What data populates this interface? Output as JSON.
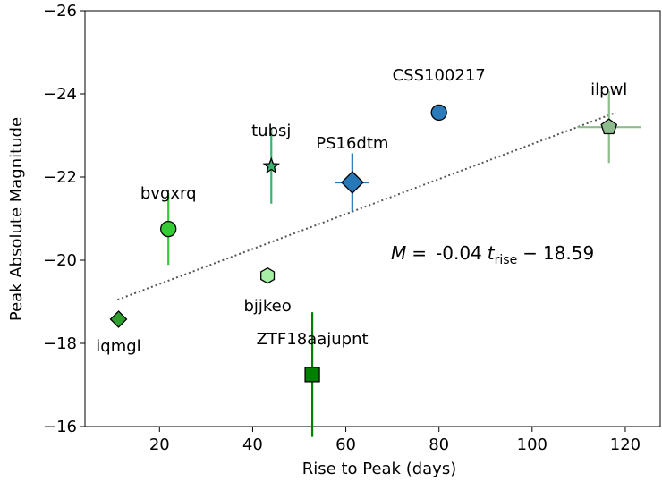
{
  "chart_data": {
    "type": "scatter",
    "x_label": "Rise to Peak (days)",
    "y_label": "Peak Absolute Magnitude",
    "xlim": [
      4,
      127.5
    ],
    "ylim": [
      -16,
      -26
    ],
    "xticks": [
      20,
      40,
      60,
      80,
      100,
      120
    ],
    "yticks": [
      {
        "value": -16,
        "label": "−16"
      },
      {
        "value": -18,
        "label": "−18"
      },
      {
        "value": -20,
        "label": "−20"
      },
      {
        "value": -22,
        "label": "−22"
      },
      {
        "value": -24,
        "label": "−24"
      },
      {
        "value": -26,
        "label": "−26"
      }
    ],
    "series": [
      {
        "name": "iqmgl",
        "color": "#2e9e2e",
        "marker": "diamond",
        "x": [
          11.2
        ],
        "values": [
          -18.58
        ],
        "yerr": [
          null
        ],
        "xerr": [
          null
        ]
      },
      {
        "name": "bvgxrq",
        "color": "#33cc33",
        "marker": "circle",
        "x": [
          21.9
        ],
        "values": [
          -20.75
        ],
        "yerr": [
          0.86
        ],
        "xerr": [
          null
        ]
      },
      {
        "name": "bjjkeo",
        "color": "#a6f0a6",
        "marker": "hexagon",
        "x": [
          43.2
        ],
        "values": [
          -19.63
        ],
        "yerr": [
          null
        ],
        "xerr": [
          null
        ]
      },
      {
        "name": "tubsj",
        "color": "#3cb371",
        "marker": "star",
        "x": [
          44
        ],
        "values": [
          -22.26
        ],
        "yerr": [
          0.9
        ],
        "xerr": [
          null
        ]
      },
      {
        "name": "ZTF18aajupnt",
        "color": "#008000",
        "marker": "square",
        "x": [
          52.8
        ],
        "values": [
          -17.25
        ],
        "yerr": [
          1.5
        ],
        "xerr": [
          null
        ]
      },
      {
        "name": "PS16dtm",
        "color": "#2878b8",
        "marker": "diamond",
        "x": [
          61.4
        ],
        "values": [
          -21.87
        ],
        "yerr": [
          0.7
        ],
        "xerr": [
          3.7
        ]
      },
      {
        "name": "CSS100217",
        "color": "#2b7bba",
        "marker": "circle",
        "x": [
          80
        ],
        "values": [
          -23.55
        ],
        "yerr": [
          null
        ],
        "xerr": [
          null
        ]
      },
      {
        "name": "ilpwl",
        "color": "#8fbc8f",
        "marker": "pentagon",
        "x": [
          116.5
        ],
        "values": [
          -23.2
        ],
        "yerr": [
          0.86
        ],
        "xerr": [
          6.8
        ]
      }
    ],
    "fit": {
      "x": [
        11,
        118
      ],
      "y": [
        -19.05,
        -23.55
      ],
      "color": "#555555"
    },
    "annotation": {
      "lhs": "M",
      "eq": "=",
      "slope": "-0.04",
      "var": "t",
      "sub": "rise",
      "op": "−",
      "intercept": "18.59"
    }
  }
}
